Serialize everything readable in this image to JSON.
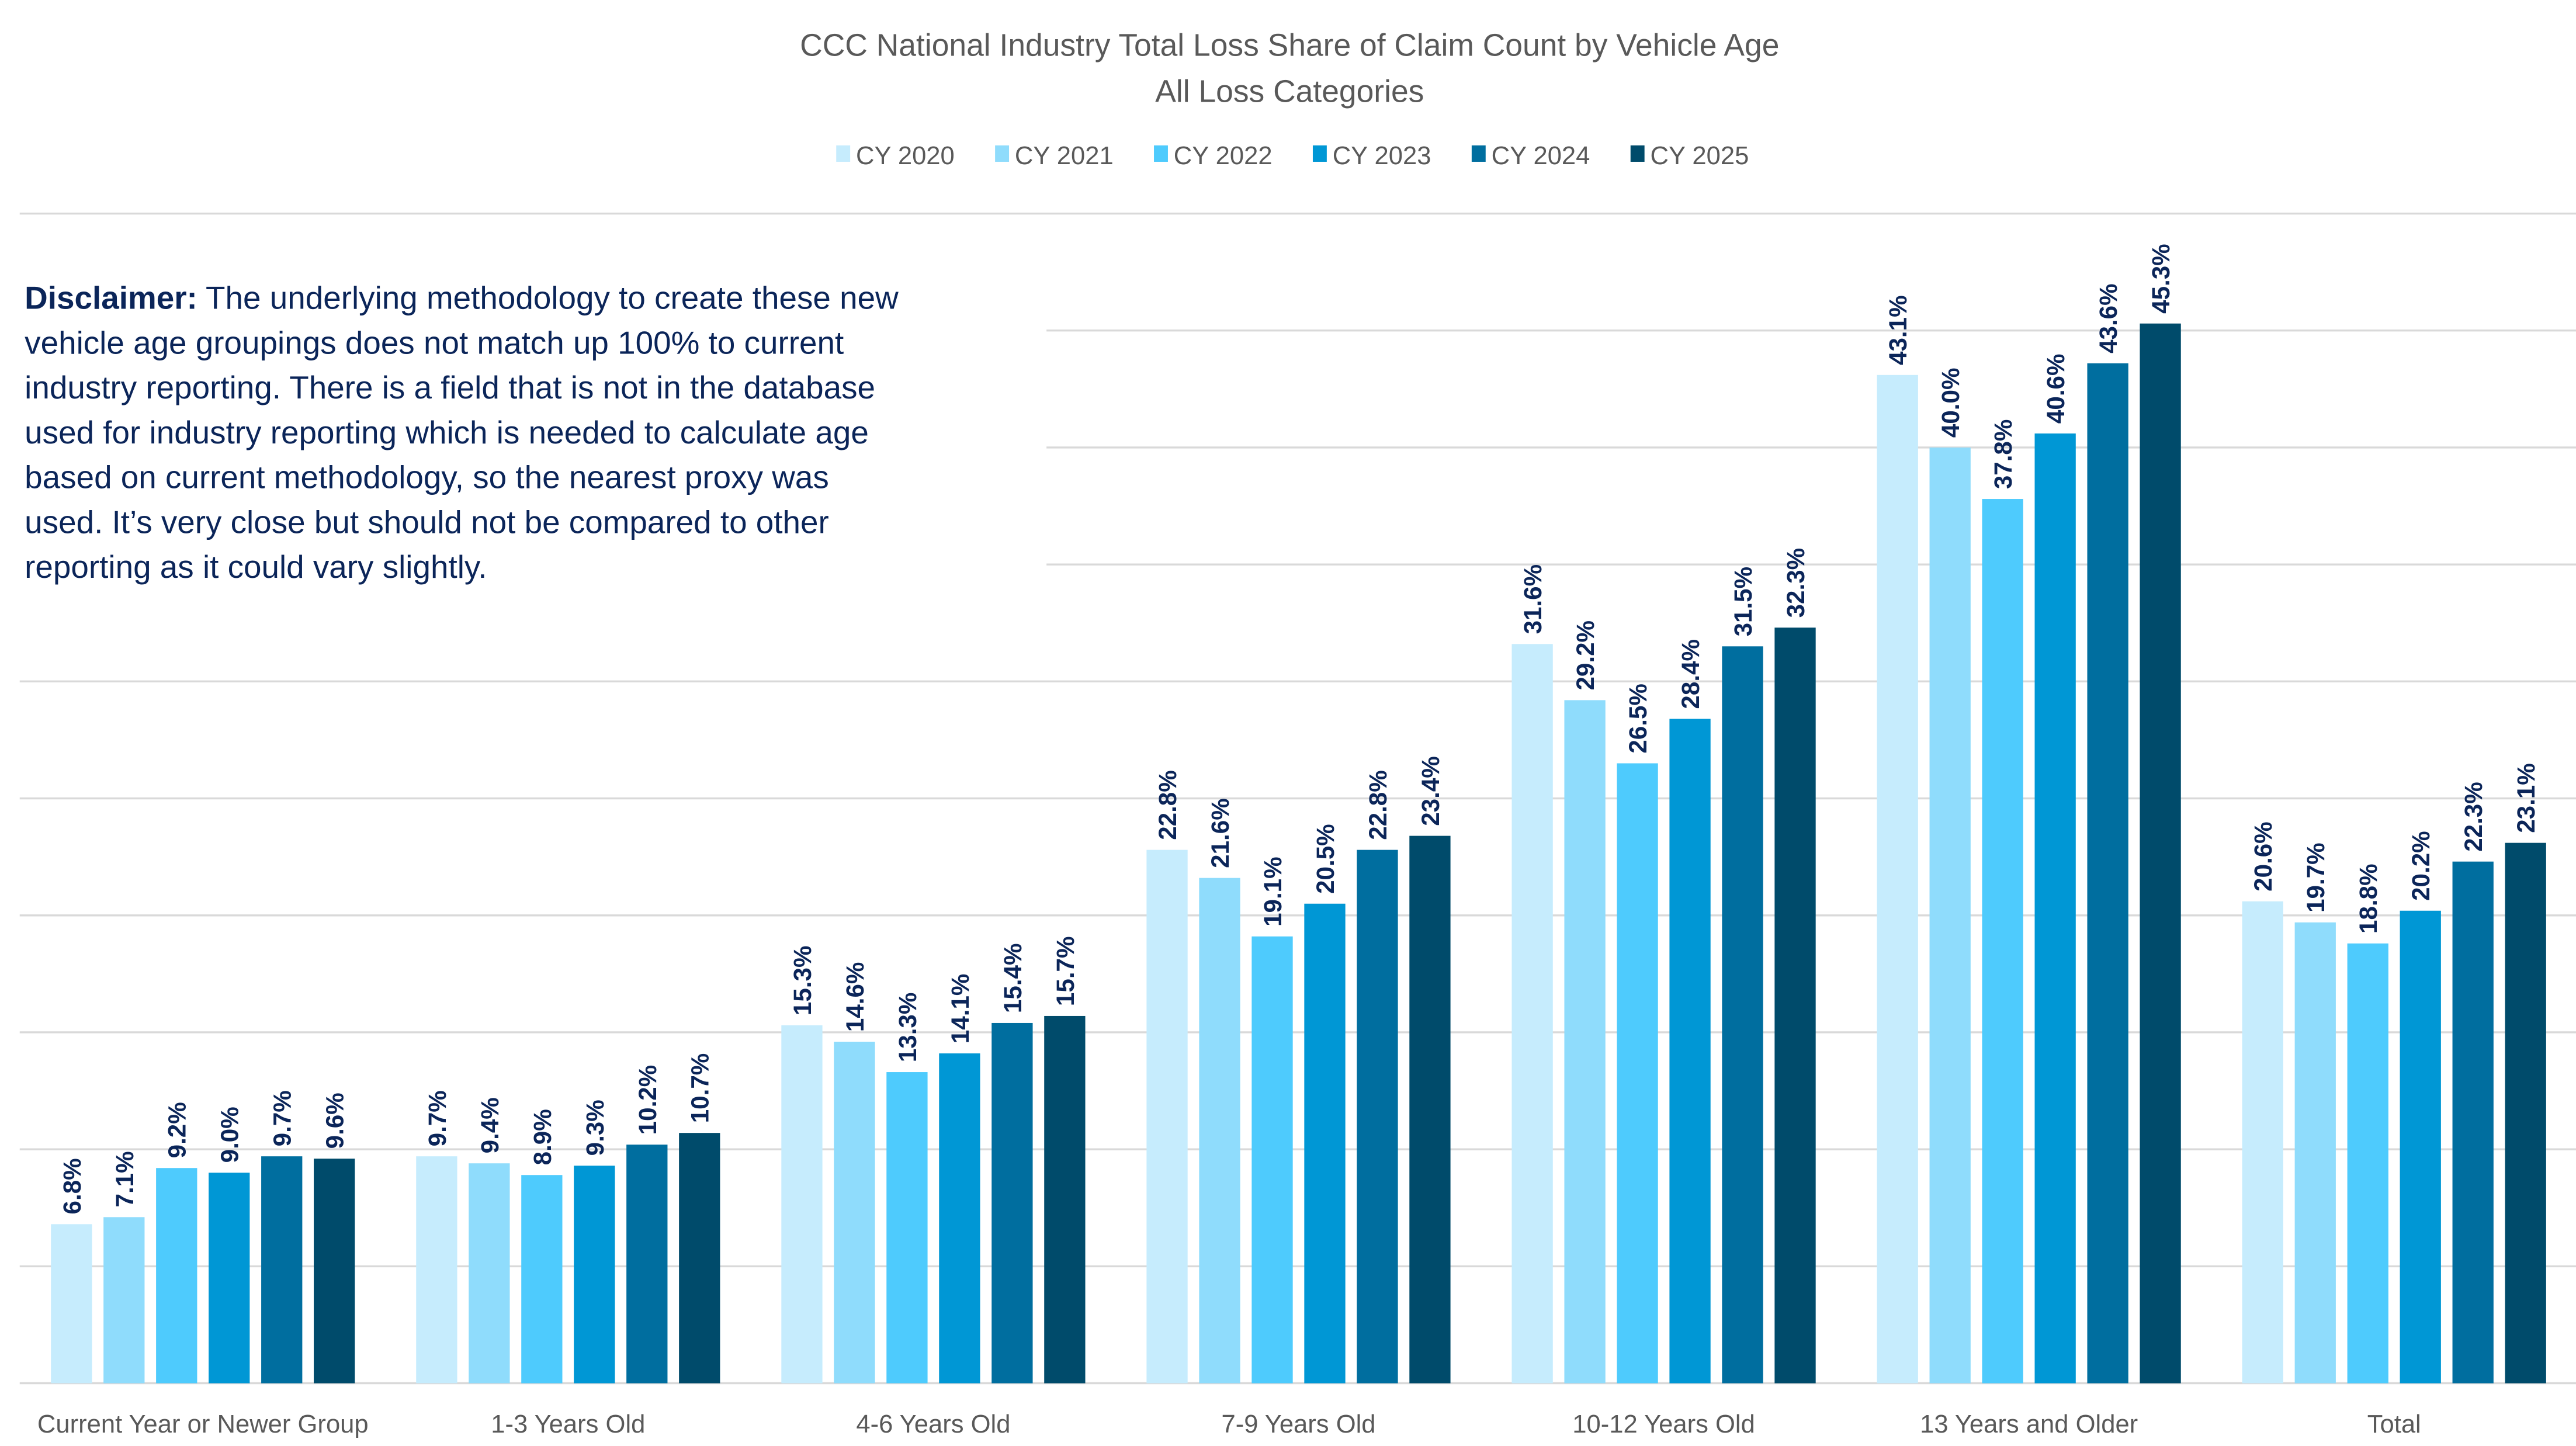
{
  "chart_data": {
    "type": "bar",
    "title": "CCC National Industry Total Loss Share of Claim Count by Vehicle Age",
    "subtitle": "All Loss Categories",
    "categories": [
      "Current Year or Newer Group",
      "1-3 Years Old",
      "4-6 Years Old",
      "7-9 Years Old",
      "10-12 Years Old",
      "13 Years and Older",
      "Total"
    ],
    "series": [
      {
        "name": "CY 2020",
        "color": "#c6ecfd",
        "values": [
          6.8,
          9.7,
          15.3,
          22.8,
          31.6,
          43.1,
          20.6
        ]
      },
      {
        "name": "CY 2021",
        "color": "#8fdcfc",
        "values": [
          7.1,
          9.4,
          14.6,
          21.6,
          29.2,
          40.0,
          19.7
        ]
      },
      {
        "name": "CY 2022",
        "color": "#4ecbfd",
        "values": [
          9.2,
          8.9,
          13.3,
          19.1,
          26.5,
          37.8,
          18.8
        ]
      },
      {
        "name": "CY 2023",
        "color": "#0097d5",
        "values": [
          9.0,
          9.3,
          14.1,
          20.5,
          28.4,
          40.6,
          20.2
        ]
      },
      {
        "name": "CY 2024",
        "color": "#006e9f",
        "values": [
          9.7,
          10.2,
          15.4,
          22.8,
          31.5,
          43.6,
          22.3
        ]
      },
      {
        "name": "CY 2025",
        "color": "#004b6b",
        "values": [
          9.6,
          10.7,
          15.7,
          23.4,
          32.3,
          45.3,
          23.1
        ]
      }
    ],
    "value_suffix": "%",
    "ylim": [
      0,
      50
    ],
    "y_gridline_step": 5,
    "y_tick_labels_shown": false,
    "grid": true,
    "legend_placement": "top",
    "xlabel": "",
    "ylabel": "",
    "data_labels": "rotated vertical, above bars"
  },
  "disclaimer": {
    "label": "Disclaimer:",
    "lines": [
      " The underlying methodology to create these new",
      "vehicle age groupings does not match up 100% to current",
      "industry reporting. There is a field that is not in the database",
      "used for industry reporting which is needed to calculate age",
      "based on current methodology, so the nearest proxy was",
      "used. It’s very close but should not be compared to other",
      "reporting as it could vary slightly."
    ]
  }
}
